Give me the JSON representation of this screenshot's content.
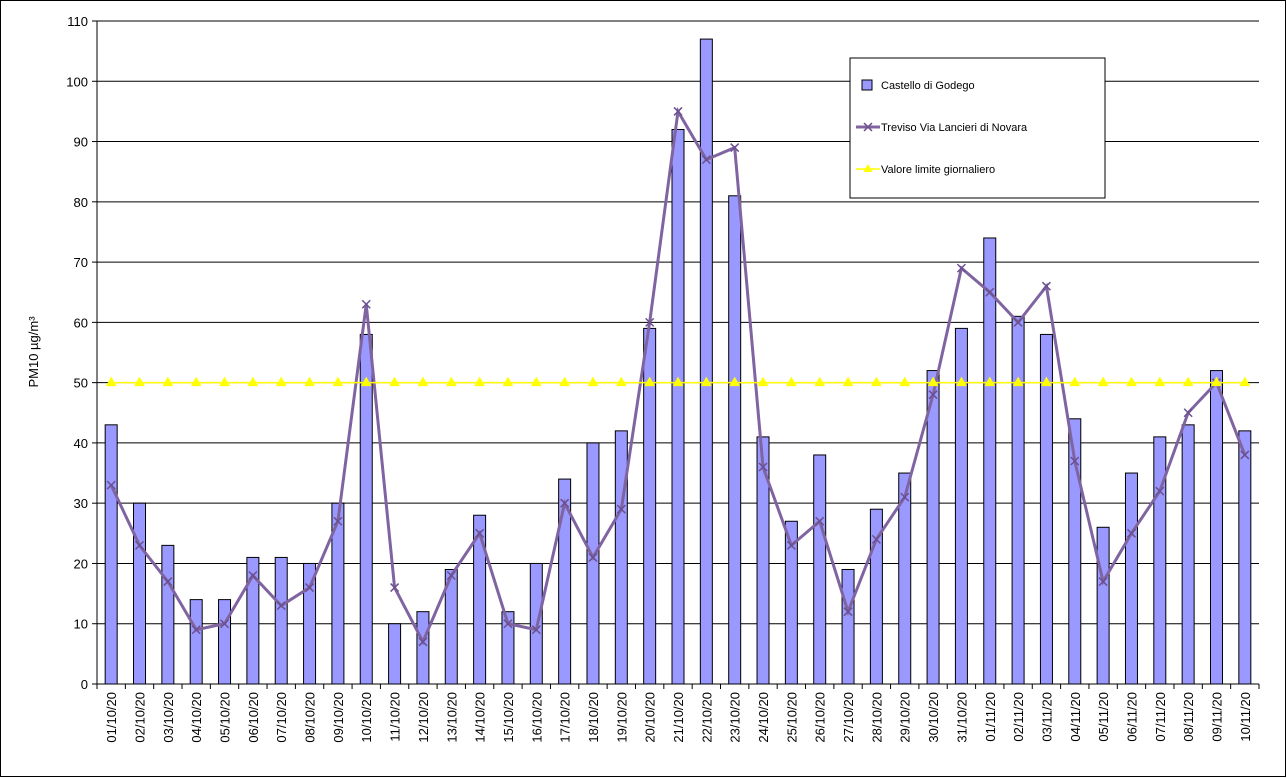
{
  "chart_data": {
    "type": "bar",
    "y_label": "PM10 µg/m³",
    "categories": [
      "01/10/20",
      "02/10/20",
      "03/10/20",
      "04/10/20",
      "05/10/20",
      "06/10/20",
      "07/10/20",
      "08/10/20",
      "09/10/20",
      "10/10/20",
      "11/10/20",
      "12/10/20",
      "13/10/20",
      "14/10/20",
      "15/10/20",
      "16/10/20",
      "17/10/20",
      "18/10/20",
      "19/10/20",
      "20/10/20",
      "21/10/20",
      "22/10/20",
      "23/10/20",
      "24/10/20",
      "25/10/20",
      "26/10/20",
      "27/10/20",
      "28/10/20",
      "29/10/20",
      "30/10/20",
      "31/10/20",
      "01/11/20",
      "02/11/20",
      "03/11/20",
      "04/11/20",
      "05/11/20",
      "06/11/20",
      "07/11/20",
      "08/11/20",
      "09/11/20",
      "10/11/20"
    ],
    "series": [
      {
        "name": "Castello di Godego",
        "type": "bar",
        "color": "#9999ff",
        "values": [
          43,
          30,
          23,
          14,
          14,
          21,
          21,
          20,
          30,
          58,
          10,
          12,
          19,
          28,
          12,
          20,
          34,
          40,
          42,
          59,
          92,
          107,
          81,
          41,
          27,
          38,
          19,
          29,
          35,
          52,
          59,
          74,
          61,
          58,
          44,
          26,
          35,
          41,
          43,
          52,
          42
        ]
      },
      {
        "name": "Treviso Via Lancieri di Novara",
        "type": "line",
        "marker": "x",
        "color": "#8064a2",
        "values": [
          33,
          23,
          17,
          9,
          10,
          18,
          13,
          16,
          27,
          63,
          16,
          7,
          18,
          25,
          10,
          9,
          30,
          21,
          29,
          60,
          95,
          87,
          89,
          36,
          23,
          27,
          12,
          24,
          31,
          48,
          69,
          65,
          60,
          66,
          37,
          17,
          25,
          32,
          45,
          50,
          38
        ]
      },
      {
        "name": "Valore limite giornaliero",
        "type": "line",
        "marker": "triangle",
        "color": "#ffff00",
        "values": [
          50,
          50,
          50,
          50,
          50,
          50,
          50,
          50,
          50,
          50,
          50,
          50,
          50,
          50,
          50,
          50,
          50,
          50,
          50,
          50,
          50,
          50,
          50,
          50,
          50,
          50,
          50,
          50,
          50,
          50,
          50,
          50,
          50,
          50,
          50,
          50,
          50,
          50,
          50,
          50,
          50
        ]
      }
    ],
    "ylim": [
      0,
      110
    ],
    "yticks": [
      0,
      10,
      20,
      30,
      40,
      50,
      60,
      70,
      80,
      90,
      100,
      110
    ],
    "grid": true,
    "legend": "upper right"
  }
}
